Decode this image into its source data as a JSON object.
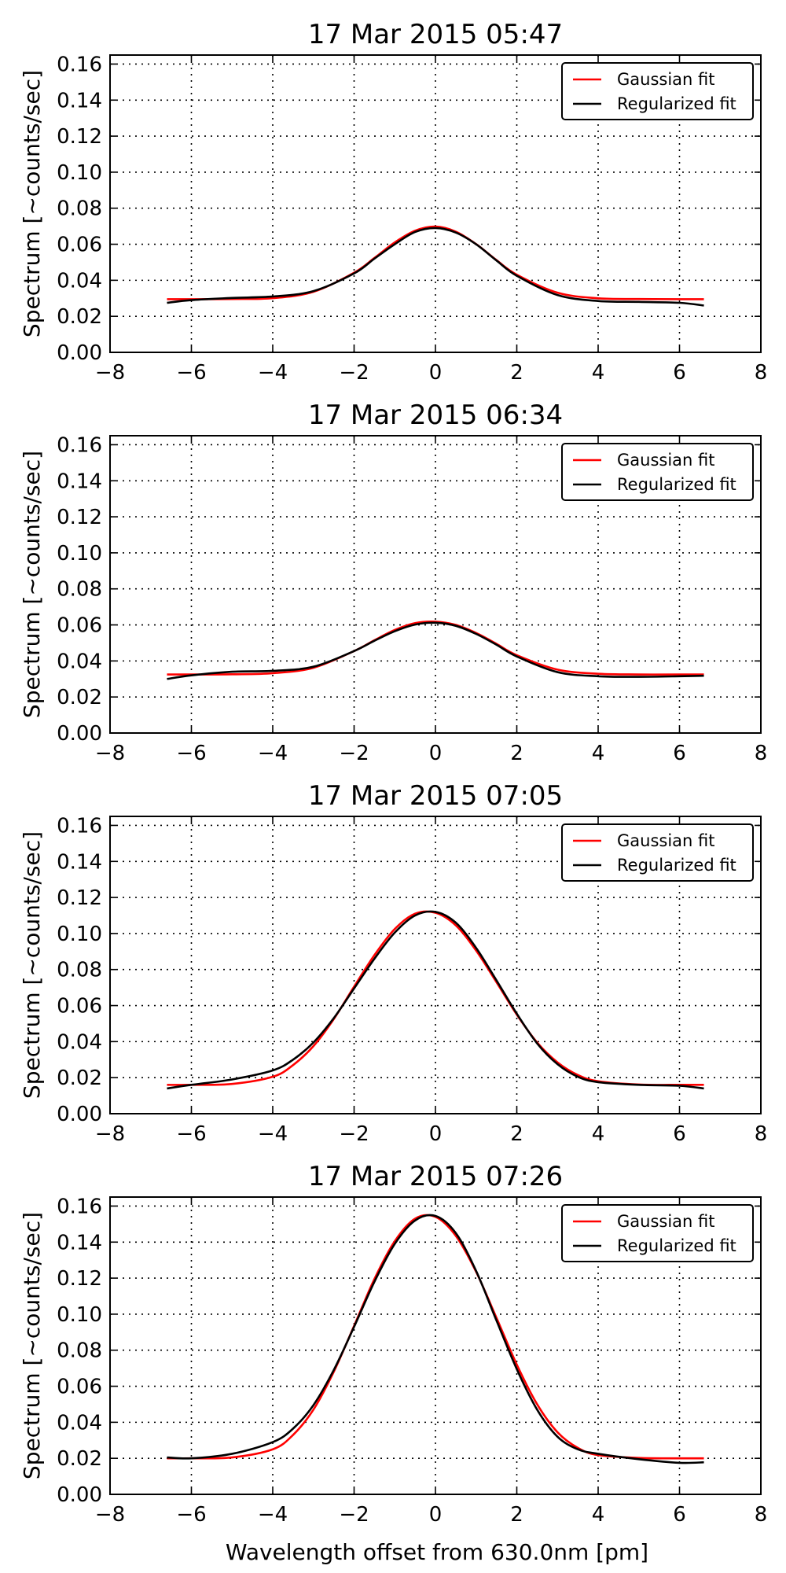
{
  "figure": {
    "xlabel": "Wavelength offset from 630.0nm [pm]"
  },
  "chart_data": [
    {
      "type": "line",
      "title": "17 Mar 2015  05:47",
      "xlabel": "",
      "ylabel": "Spectrum [~counts/sec]",
      "xlim": [
        -8,
        8
      ],
      "ylim": [
        0,
        0.165
      ],
      "xticks": [
        -8,
        -6,
        -4,
        -2,
        0,
        2,
        4,
        6,
        8
      ],
      "xtick_labels": [
        "−8",
        "−6",
        "−4",
        "−2",
        "0",
        "2",
        "4",
        "6",
        "8"
      ],
      "yticks": [
        0.0,
        0.02,
        0.04,
        0.06,
        0.08,
        0.1,
        0.12,
        0.14,
        0.16
      ],
      "ytick_labels": [
        "0.00",
        "0.02",
        "0.04",
        "0.06",
        "0.08",
        "0.10",
        "0.12",
        "0.14",
        "0.16"
      ],
      "grid": true,
      "legend_position": "top-right",
      "series": [
        {
          "name": "Gaussian fit",
          "color": "#ff0000",
          "x": [
            -6.6,
            -6.0,
            -5.0,
            -4.0,
            -3.0,
            -2.0,
            -1.5,
            -1.0,
            -0.5,
            0.0,
            0.5,
            1.0,
            1.5,
            2.0,
            3.0,
            4.0,
            5.0,
            6.0,
            6.6
          ],
          "y": [
            0.0295,
            0.0295,
            0.0296,
            0.0301,
            0.0336,
            0.0442,
            0.0524,
            0.061,
            0.0675,
            0.0698,
            0.067,
            0.0601,
            0.0512,
            0.0431,
            0.0331,
            0.03,
            0.0296,
            0.0295,
            0.0295
          ]
        },
        {
          "name": "Regularized fit",
          "color": "#000000",
          "x": [
            -6.6,
            -6.0,
            -5.0,
            -4.0,
            -3.0,
            -2.0,
            -1.5,
            -1.0,
            -0.5,
            0.0,
            0.5,
            1.0,
            1.5,
            2.0,
            3.0,
            4.0,
            5.0,
            6.0,
            6.6
          ],
          "y": [
            0.0275,
            0.029,
            0.0302,
            0.031,
            0.034,
            0.0438,
            0.052,
            0.06,
            0.0668,
            0.069,
            0.0665,
            0.06,
            0.051,
            0.0425,
            0.0318,
            0.0285,
            0.028,
            0.0275,
            0.026
          ]
        }
      ]
    },
    {
      "type": "line",
      "title": "17 Mar 2015  06:34",
      "xlabel": "",
      "ylabel": "Spectrum [~counts/sec]",
      "xlim": [
        -8,
        8
      ],
      "ylim": [
        0,
        0.165
      ],
      "xticks": [
        -8,
        -6,
        -4,
        -2,
        0,
        2,
        4,
        6,
        8
      ],
      "xtick_labels": [
        "−8",
        "−6",
        "−4",
        "−2",
        "0",
        "2",
        "4",
        "6",
        "8"
      ],
      "yticks": [
        0.0,
        0.02,
        0.04,
        0.06,
        0.08,
        0.1,
        0.12,
        0.14,
        0.16
      ],
      "ytick_labels": [
        "0.00",
        "0.02",
        "0.04",
        "0.06",
        "0.08",
        "0.10",
        "0.12",
        "0.14",
        "0.16"
      ],
      "grid": true,
      "legend_position": "top-right",
      "series": [
        {
          "name": "Gaussian fit",
          "color": "#ff0000",
          "x": [
            -6.6,
            -6.0,
            -5.0,
            -4.0,
            -3.0,
            -2.0,
            -1.5,
            -1.0,
            -0.5,
            0.0,
            0.5,
            1.0,
            1.5,
            2.0,
            3.0,
            4.0,
            5.0,
            6.0,
            6.6
          ],
          "y": [
            0.0325,
            0.0325,
            0.0326,
            0.0332,
            0.0362,
            0.0455,
            0.0515,
            0.0572,
            0.061,
            0.0618,
            0.06,
            0.0555,
            0.0495,
            0.0432,
            0.0352,
            0.0329,
            0.0325,
            0.0325,
            0.0325
          ]
        },
        {
          "name": "Regularized fit",
          "color": "#000000",
          "x": [
            -6.6,
            -6.0,
            -5.0,
            -4.0,
            -3.0,
            -2.0,
            -1.5,
            -1.0,
            -0.5,
            0.0,
            0.5,
            1.0,
            1.5,
            2.0,
            3.0,
            4.0,
            5.0,
            6.0,
            6.6
          ],
          "y": [
            0.03,
            0.032,
            0.034,
            0.0345,
            0.0368,
            0.0455,
            0.0512,
            0.0565,
            0.0602,
            0.0612,
            0.0595,
            0.055,
            0.049,
            0.0425,
            0.0338,
            0.0315,
            0.0312,
            0.0315,
            0.0318
          ]
        }
      ]
    },
    {
      "type": "line",
      "title": "17 Mar 2015  07:05",
      "xlabel": "",
      "ylabel": "Spectrum [~counts/sec]",
      "xlim": [
        -8,
        8
      ],
      "ylim": [
        0,
        0.165
      ],
      "xticks": [
        -8,
        -6,
        -4,
        -2,
        0,
        2,
        4,
        6,
        8
      ],
      "xtick_labels": [
        "−8",
        "−6",
        "−4",
        "−2",
        "0",
        "2",
        "4",
        "6",
        "8"
      ],
      "yticks": [
        0.0,
        0.02,
        0.04,
        0.06,
        0.08,
        0.1,
        0.12,
        0.14,
        0.16
      ],
      "ytick_labels": [
        "0.00",
        "0.02",
        "0.04",
        "0.06",
        "0.08",
        "0.10",
        "0.12",
        "0.14",
        "0.16"
      ],
      "grid": true,
      "legend_position": "top-right",
      "series": [
        {
          "name": "Gaussian fit",
          "color": "#ff0000",
          "x": [
            -6.6,
            -6.0,
            -5.0,
            -4.0,
            -3.5,
            -3.0,
            -2.5,
            -2.0,
            -1.5,
            -1.0,
            -0.5,
            0.0,
            0.5,
            1.0,
            1.5,
            2.0,
            2.5,
            3.0,
            3.5,
            4.0,
            5.0,
            6.0,
            6.6
          ],
          "y": [
            0.016,
            0.016,
            0.0165,
            0.0205,
            0.027,
            0.0375,
            0.0525,
            0.0705,
            0.088,
            0.1025,
            0.111,
            0.1115,
            0.1045,
            0.0905,
            0.073,
            0.055,
            0.0395,
            0.0285,
            0.0215,
            0.018,
            0.0162,
            0.016,
            0.016
          ]
        },
        {
          "name": "Regularized fit",
          "color": "#000000",
          "x": [
            -6.6,
            -6.0,
            -5.0,
            -4.0,
            -3.5,
            -3.0,
            -2.5,
            -2.0,
            -1.5,
            -1.0,
            -0.5,
            0.0,
            0.5,
            1.0,
            1.5,
            2.0,
            2.5,
            3.0,
            3.5,
            4.0,
            5.0,
            6.0,
            6.6
          ],
          "y": [
            0.014,
            0.016,
            0.019,
            0.024,
            0.03,
            0.0395,
            0.053,
            0.0695,
            0.086,
            0.1005,
            0.11,
            0.112,
            0.106,
            0.092,
            0.074,
            0.0555,
            0.039,
            0.0275,
            0.0205,
            0.0175,
            0.016,
            0.0155,
            0.014
          ]
        }
      ]
    },
    {
      "type": "line",
      "title": "17 Mar 2015  07:26",
      "xlabel": "",
      "ylabel": "Spectrum [~counts/sec]",
      "xlim": [
        -8,
        8
      ],
      "ylim": [
        0,
        0.165
      ],
      "xticks": [
        -8,
        -6,
        -4,
        -2,
        0,
        2,
        4,
        6,
        8
      ],
      "xtick_labels": [
        "−8",
        "−6",
        "−4",
        "−2",
        "0",
        "2",
        "4",
        "6",
        "8"
      ],
      "yticks": [
        0.0,
        0.02,
        0.04,
        0.06,
        0.08,
        0.1,
        0.12,
        0.14,
        0.16
      ],
      "ytick_labels": [
        "0.00",
        "0.02",
        "0.04",
        "0.06",
        "0.08",
        "0.10",
        "0.12",
        "0.14",
        "0.16"
      ],
      "grid": true,
      "legend_position": "top-right",
      "series": [
        {
          "name": "Gaussian fit",
          "color": "#ff0000",
          "x": [
            -6.6,
            -6.0,
            -5.0,
            -4.0,
            -3.5,
            -3.0,
            -2.5,
            -2.0,
            -1.5,
            -1.0,
            -0.5,
            0.0,
            0.5,
            1.0,
            1.5,
            2.0,
            2.5,
            3.0,
            3.5,
            4.0,
            5.0,
            6.0,
            6.6
          ],
          "y": [
            0.02,
            0.02,
            0.0205,
            0.025,
            0.033,
            0.047,
            0.068,
            0.0935,
            0.1195,
            0.1405,
            0.153,
            0.154,
            0.1435,
            0.1235,
            0.098,
            0.072,
            0.05,
            0.0345,
            0.0258,
            0.0218,
            0.0202,
            0.02,
            0.02
          ]
        },
        {
          "name": "Regularized fit",
          "color": "#000000",
          "x": [
            -6.6,
            -6.0,
            -5.0,
            -4.0,
            -3.5,
            -3.0,
            -2.5,
            -2.0,
            -1.5,
            -1.0,
            -0.5,
            0.0,
            0.5,
            1.0,
            1.5,
            2.0,
            2.5,
            3.0,
            3.5,
            4.0,
            5.0,
            6.0,
            6.6
          ],
          "y": [
            0.0205,
            0.02,
            0.0225,
            0.029,
            0.0365,
            0.0495,
            0.069,
            0.093,
            0.118,
            0.139,
            0.152,
            0.1545,
            0.145,
            0.124,
            0.0965,
            0.0695,
            0.047,
            0.032,
            0.025,
            0.0225,
            0.0195,
            0.0175,
            0.0178
          ]
        }
      ]
    }
  ]
}
